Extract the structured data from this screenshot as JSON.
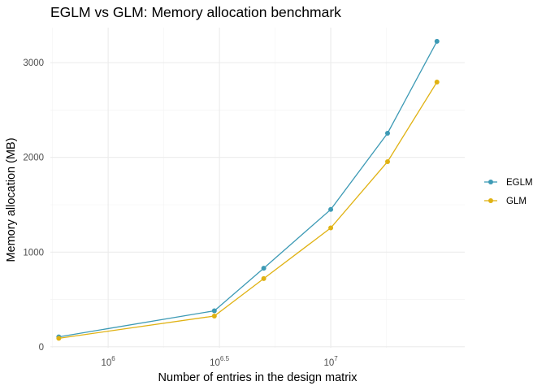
{
  "chart_data": {
    "type": "line",
    "title": "EGLM vs GLM: Memory allocation benchmark",
    "xlabel": "Number of entries in the design matrix",
    "ylabel": "Memory allocation (MB)",
    "x_scale": "log10",
    "x": [
      600000,
      3000000,
      5000000,
      10000000,
      18000000,
      30000000
    ],
    "xlim": [
      550000,
      40000000
    ],
    "ylim": [
      -10,
      3370
    ],
    "x_ticks": [
      {
        "value": 1000000,
        "base": "10",
        "exp": "6"
      },
      {
        "value": 3162278,
        "base": "10",
        "exp": "6.5"
      },
      {
        "value": 10000000,
        "base": "10",
        "exp": "7"
      }
    ],
    "y_ticks": [
      {
        "value": 0,
        "label": "0"
      },
      {
        "value": 1000,
        "label": "1000"
      },
      {
        "value": 2000,
        "label": "2000"
      },
      {
        "value": 3000,
        "label": "3000"
      }
    ],
    "series": [
      {
        "name": "EGLM",
        "color": "#3d9ab5",
        "values": [
          105,
          380,
          830,
          1450,
          2255,
          3225
        ]
      },
      {
        "name": "GLM",
        "color": "#e0b213",
        "values": [
          90,
          325,
          720,
          1255,
          1955,
          2795
        ]
      }
    ],
    "grid": true,
    "legend_position": "right"
  }
}
